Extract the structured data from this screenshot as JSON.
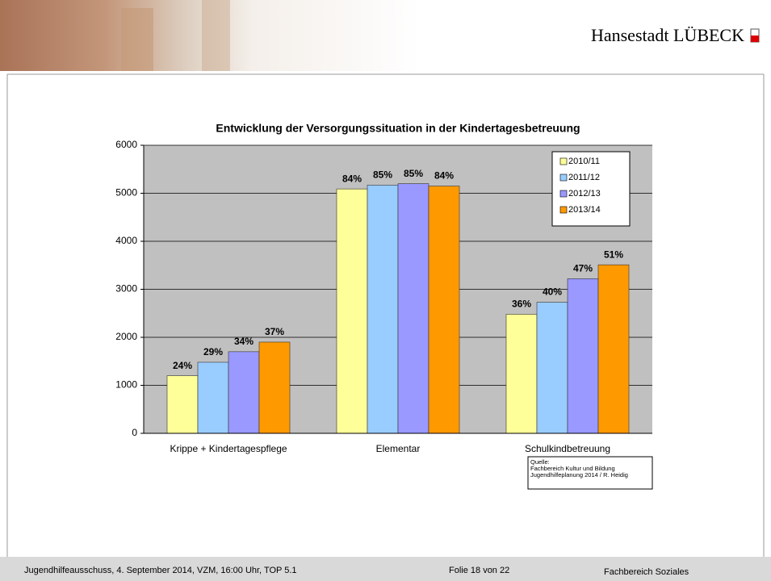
{
  "header": {
    "title": "Hansestadt LÜBECK"
  },
  "chart_data": {
    "type": "bar",
    "title": "Entwicklung der Versorgungssituation in der Kindertagesbetreuung",
    "categories": [
      "Krippe + Kindertagespflege",
      "Elementar",
      "Schulkindbetreuung"
    ],
    "series": [
      {
        "name": "2010/11",
        "color": "#ffff99",
        "values": [
          1200,
          5090,
          2480
        ],
        "labels": [
          "24%",
          "84%",
          "36%"
        ]
      },
      {
        "name": "2011/12",
        "color": "#99ccff",
        "values": [
          1480,
          5170,
          2730
        ],
        "labels": [
          "29%",
          "85%",
          "40%"
        ]
      },
      {
        "name": "2012/13",
        "color": "#9999ff",
        "values": [
          1700,
          5200,
          3220
        ],
        "labels": [
          "34%",
          "85%",
          "47%"
        ]
      },
      {
        "name": "2013/14",
        "color": "#ff9900",
        "values": [
          1900,
          5150,
          3510
        ],
        "labels": [
          "37%",
          "84%",
          "51%"
        ]
      }
    ],
    "ylim": [
      0,
      6000
    ],
    "yticks": [
      0,
      1000,
      2000,
      3000,
      4000,
      5000,
      6000
    ],
    "grid": true,
    "legend": "upper-right",
    "source": [
      "Quelle:",
      "Fachbereich Kultur und Bildung",
      "Jugendhilfeplanung 2014 / R. Heidig"
    ]
  },
  "footer": {
    "meeting": "Jugendhilfeausschuss, 4. September 2014, VZM, 16:00 Uhr, TOP 5.1",
    "slide": "Folie 18 von 22",
    "department": "Fachbereich Soziales"
  }
}
